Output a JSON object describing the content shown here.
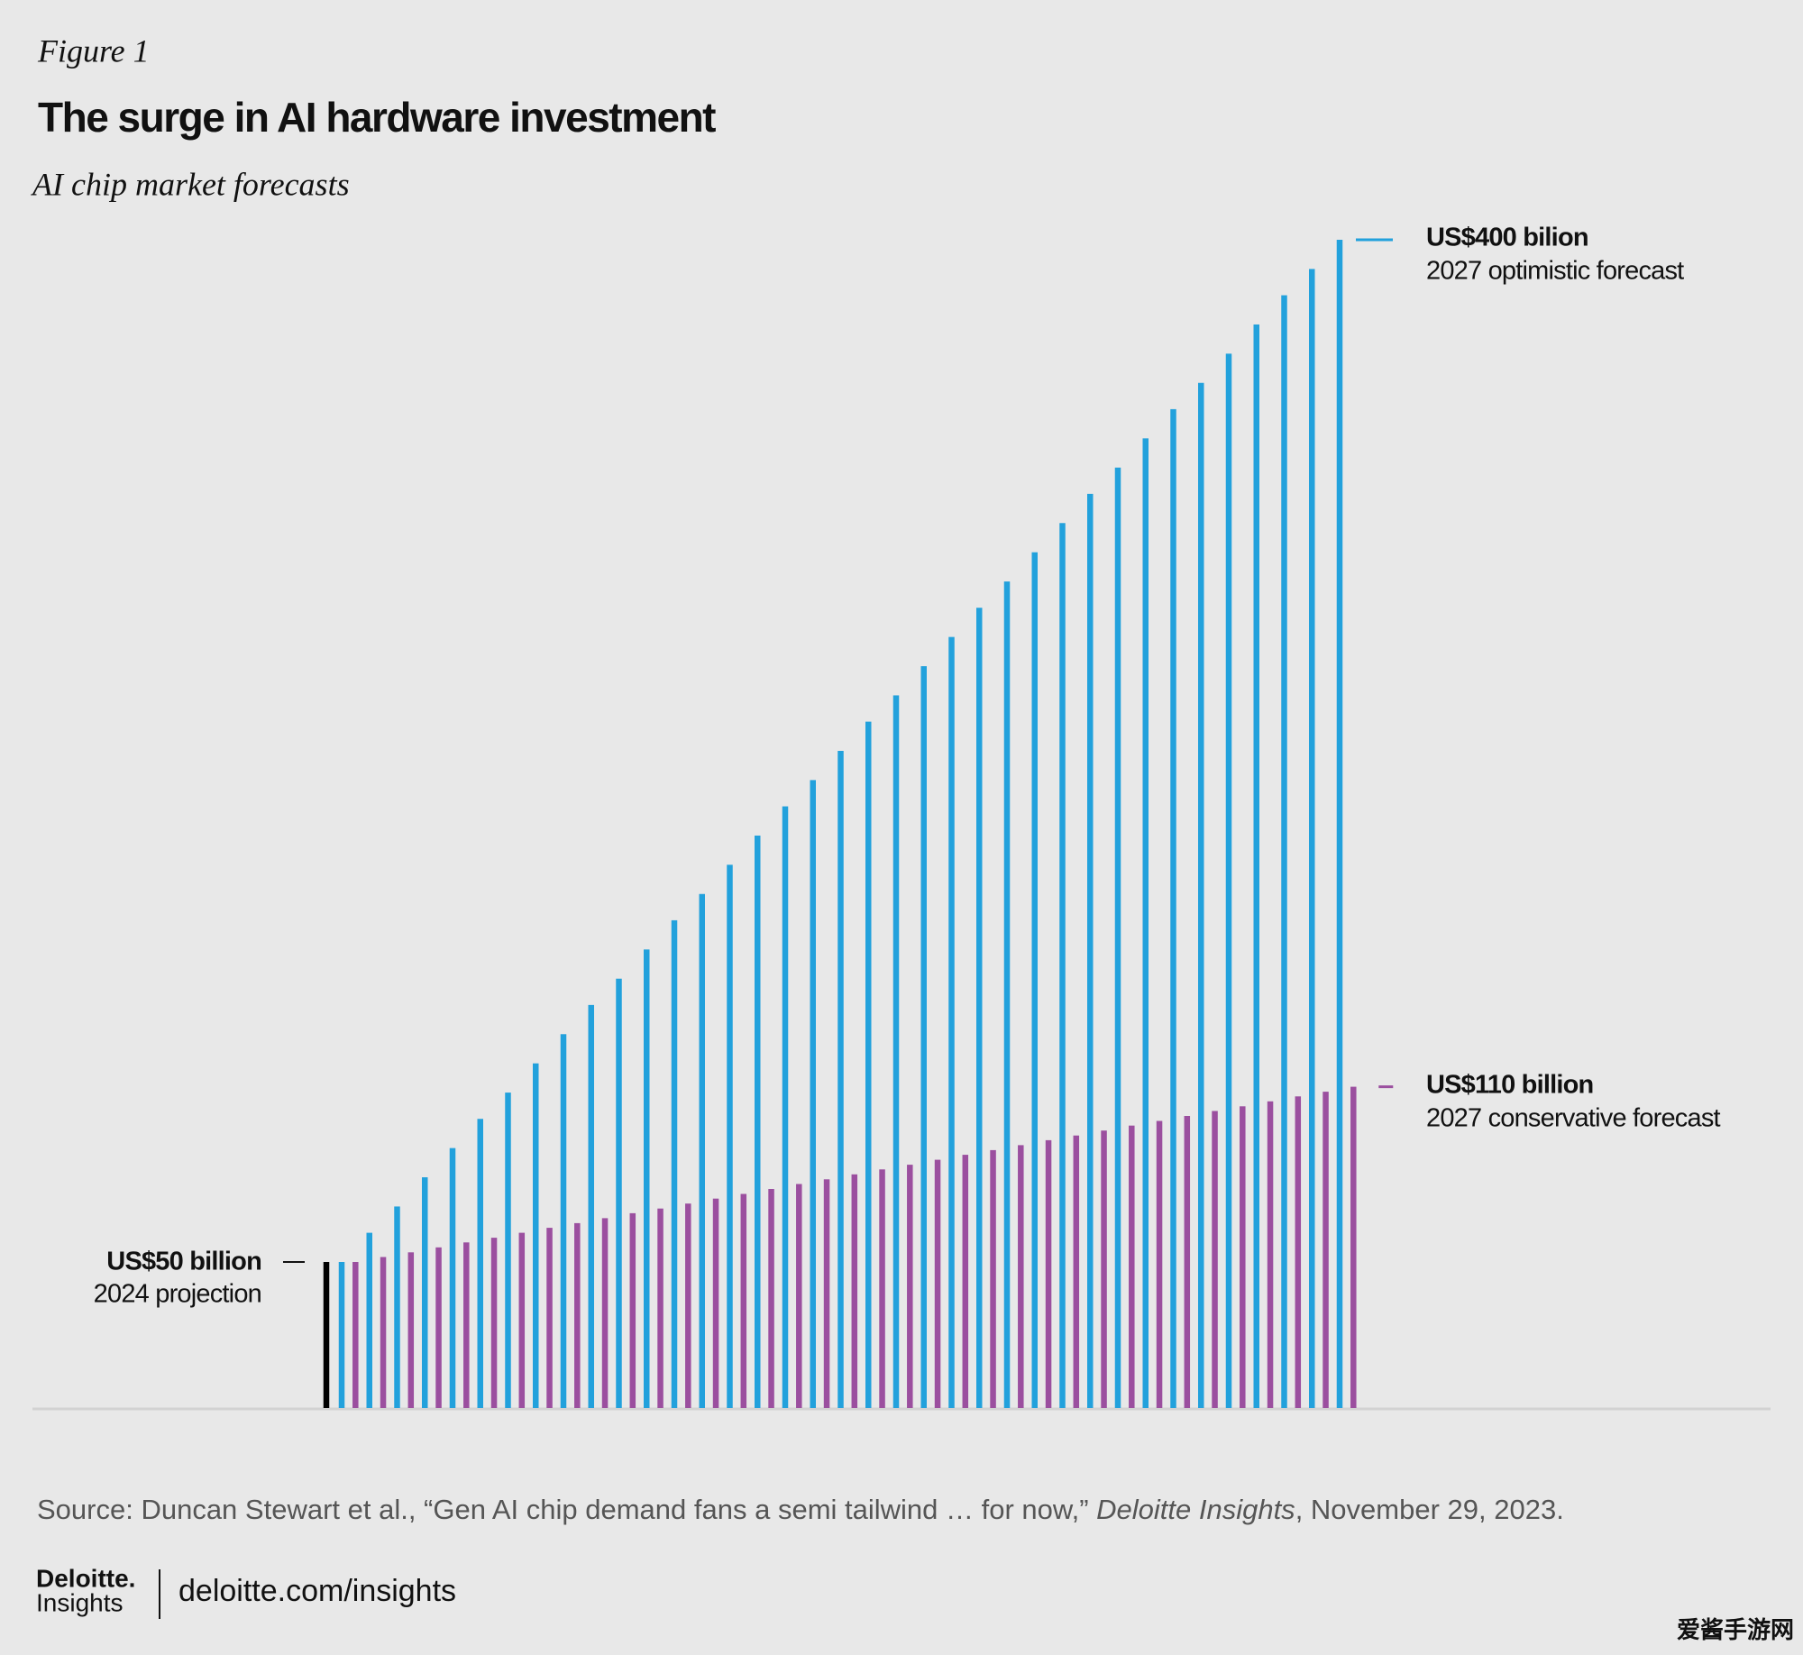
{
  "figure_label": "Figure 1",
  "chart_data": {
    "type": "bar",
    "title": "The surge in AI hardware investment",
    "subtitle": "AI chip market forecasts",
    "ylim": [
      0,
      400
    ],
    "baseline": {
      "label": "US$50 billion",
      "name": "2024 projection",
      "value": 50,
      "color": "#000000"
    },
    "series": [
      {
        "name": "2027 optimistic forecast",
        "label": "US$400 bilion",
        "color": "#22a1dc",
        "values": [
          50,
          60,
          69,
          79,
          89,
          99,
          108,
          118,
          128,
          138,
          147,
          157,
          167,
          176,
          186,
          196,
          206,
          215,
          225,
          235,
          244,
          254,
          264,
          274,
          283,
          293,
          303,
          313,
          322,
          332,
          342,
          351,
          361,
          371,
          381,
          390,
          400
        ]
      },
      {
        "name": "2027 conservative forecast",
        "label": "US$110 billion",
        "color": "#9b4f9f",
        "values": [
          50,
          51.7,
          53.3,
          55,
          56.7,
          58.3,
          60,
          61.7,
          63.3,
          65,
          66.7,
          68.3,
          70,
          71.7,
          73.3,
          75,
          76.7,
          78.3,
          80,
          81.7,
          83.3,
          85,
          86.7,
          88.3,
          90,
          91.7,
          93.3,
          95,
          96.7,
          98.3,
          100,
          101.7,
          103.3,
          105,
          106.7,
          108.3,
          110
        ]
      }
    ]
  },
  "source": {
    "before": "Source: Duncan Stewart et al., “Gen AI chip demand fans a semi tailwind … for now,” ",
    "italic": "Deloitte Insights",
    "after": ", November 29, 2023."
  },
  "footer": {
    "brand": "Deloitte.",
    "brand_sub": "Insights",
    "url": "deloitte.com/insights"
  },
  "watermark": "爱酱手游网"
}
